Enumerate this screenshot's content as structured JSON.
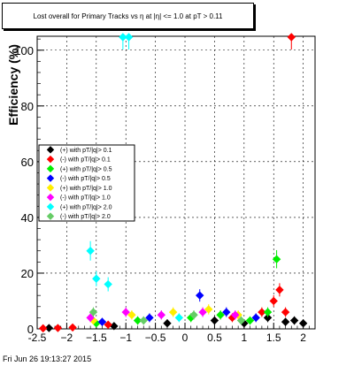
{
  "footer": {
    "timestamp": "Fri Jun 26 19:13:27 2015"
  },
  "chart_data": {
    "type": "scatter",
    "title": "Lost overall for Primary Tracks vs η at |η| <= 1.0 at pT > 0.11",
    "xlabel": "η",
    "ylabel": "Efficiency (%)",
    "xlim": [
      -2.5,
      2.2
    ],
    "ylim": [
      0,
      105
    ],
    "x_ticks": [
      -2.5,
      -2,
      -1.5,
      -1,
      -0.5,
      0,
      0.5,
      1,
      1.5,
      2
    ],
    "x_tick_labels": [
      "-2.5",
      "−2",
      "−1.5",
      "−1",
      "−0.5",
      "0",
      "0.5",
      "1",
      "1.5",
      "2"
    ],
    "y_ticks": [
      0,
      20,
      40,
      60,
      80,
      100
    ],
    "y_tick_labels": [
      "0",
      "20",
      "40",
      "60",
      "80",
      "100"
    ],
    "grid": true,
    "legend_position": "middle-left",
    "series": [
      {
        "name": "(+) with pT/|q|> 0.1",
        "color": "#000000",
        "points": [
          {
            "x": -2.3,
            "y": 0.3
          },
          {
            "x": -1.2,
            "y": 1.0
          },
          {
            "x": -0.3,
            "y": 2.0
          },
          {
            "x": 0.5,
            "y": 3.0
          },
          {
            "x": 1.0,
            "y": 2.0
          },
          {
            "x": 1.4,
            "y": 4.0
          },
          {
            "x": 1.7,
            "y": 2.5
          },
          {
            "x": 1.85,
            "y": 3.0
          },
          {
            "x": 2.0,
            "y": 2.0
          }
        ]
      },
      {
        "name": "(-) with pT/|q|> 0.1",
        "color": "#ff0000",
        "points": [
          {
            "x": -2.4,
            "y": 0.2
          },
          {
            "x": -2.15,
            "y": 0.3
          },
          {
            "x": -1.9,
            "y": 0.5
          },
          {
            "x": -1.3,
            "y": 1.5
          },
          {
            "x": 0.8,
            "y": 4.0
          },
          {
            "x": 1.3,
            "y": 6.0
          },
          {
            "x": 1.5,
            "y": 10.0
          },
          {
            "x": 1.6,
            "y": 14.0
          },
          {
            "x": 1.7,
            "y": 6.0
          },
          {
            "x": 1.8,
            "y": 105.0
          }
        ]
      },
      {
        "name": "(+) with pT/|q|> 0.5",
        "color": "#00ee00",
        "points": [
          {
            "x": -1.5,
            "y": 2.0
          },
          {
            "x": -0.8,
            "y": 3.0
          },
          {
            "x": 0.1,
            "y": 4.0
          },
          {
            "x": 0.6,
            "y": 5.0
          },
          {
            "x": 1.1,
            "y": 3.0
          },
          {
            "x": 1.4,
            "y": 6.0
          },
          {
            "x": 1.55,
            "y": 25.0
          }
        ]
      },
      {
        "name": "(-) with pT/|q|> 0.5",
        "color": "#0000ff",
        "points": [
          {
            "x": -1.4,
            "y": 2.5
          },
          {
            "x": -0.6,
            "y": 4.0
          },
          {
            "x": 0.25,
            "y": 12.0
          },
          {
            "x": 0.7,
            "y": 6.0
          },
          {
            "x": 1.2,
            "y": 4.0
          }
        ]
      },
      {
        "name": "(+) with pT/|q|> 1.0",
        "color": "#ffee00",
        "points": [
          {
            "x": -1.55,
            "y": 3.0
          },
          {
            "x": -0.9,
            "y": 5.0
          },
          {
            "x": -0.2,
            "y": 6.0
          },
          {
            "x": 0.4,
            "y": 7.0
          },
          {
            "x": 0.9,
            "y": 5.0
          }
        ]
      },
      {
        "name": "(-) with pT/|q|> 1.0",
        "color": "#ff00ff",
        "points": [
          {
            "x": -1.6,
            "y": 4.0
          },
          {
            "x": -1.0,
            "y": 6.0
          },
          {
            "x": -0.4,
            "y": 5.0
          },
          {
            "x": 0.3,
            "y": 6.0
          },
          {
            "x": 0.85,
            "y": 5.0
          }
        ]
      },
      {
        "name": "(+) with pT/|q|> 2.0",
        "color": "#00ffff",
        "points": [
          {
            "x": -1.6,
            "y": 28.0
          },
          {
            "x": -1.5,
            "y": 18.0
          },
          {
            "x": -1.3,
            "y": 16.0
          },
          {
            "x": -1.05,
            "y": 105.0
          },
          {
            "x": -0.95,
            "y": 105.0
          },
          {
            "x": -0.1,
            "y": 4.0
          }
        ]
      },
      {
        "name": "(-) with pT/|q|> 2.0",
        "color": "#66cc66",
        "points": [
          {
            "x": -1.55,
            "y": 6.0
          },
          {
            "x": -0.7,
            "y": 3.0
          },
          {
            "x": 0.15,
            "y": 5.0
          },
          {
            "x": 0.95,
            "y": 3.0
          }
        ]
      }
    ]
  }
}
